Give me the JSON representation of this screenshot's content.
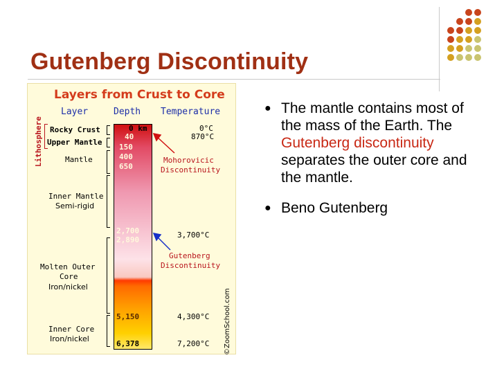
{
  "slide": {
    "title": "Gutenberg Discontinuity"
  },
  "diagram": {
    "title": "Layers from Crust to Core",
    "headers": {
      "layer": "Layer",
      "depth": "Depth",
      "temperature": "Temperature"
    },
    "lithosphere": "Lithosphere",
    "layers": {
      "rocky_crust": "Rocky Crust",
      "upper_mantle": "Upper Mantle",
      "mantle": "Mantle",
      "inner_mantle": "Inner Mantle",
      "inner_mantle_sub": "Semi-rigid",
      "outer_core_1": "Molten Outer",
      "outer_core_2": "Core",
      "outer_core_sub": "Iron/nickel",
      "inner_core": "Inner Core",
      "inner_core_sub": "Iron/nickel"
    },
    "depths": [
      "0 km",
      "40",
      "150",
      "400",
      "650",
      "2,700",
      "2,890",
      "5,150",
      "6,378"
    ],
    "temperatures": [
      "0°C",
      "870°C",
      "3,700°C",
      "4,300°C",
      "7,200°C"
    ],
    "moho_1": "Mohorovicic",
    "moho_2": "Discontinuity",
    "gut_1": "Gutenberg",
    "gut_2": "Discontinuity",
    "copyright": "©ZoomSchool.com"
  },
  "bullets": {
    "b1_pre": "The mantle contains most of the mass of the Earth. The ",
    "b1_hl": "Gutenberg discontinuity",
    "b1_post": " separates the outer core and the mantle.",
    "b2": "Beno Gutenberg"
  },
  "colors": {
    "title": "#a03014",
    "highlight": "#c82814",
    "dots": [
      "#8c2a10",
      "#c8441c",
      "#d4a020",
      "#c9c470"
    ]
  }
}
